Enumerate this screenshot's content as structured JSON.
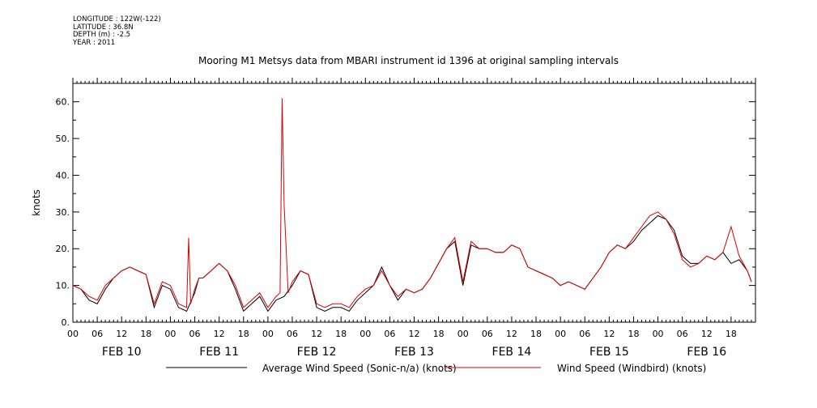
{
  "meta": {
    "longitude": "LONGITUDE : 122W(-122)",
    "latitude": "LATITUDE : 36.8N",
    "depth": "DEPTH (m) : -2.5",
    "year": "YEAR : 2011"
  },
  "chart_data": {
    "type": "line",
    "title": "Mooring M1 Metsys data from MBARI instrument id 1396 at original sampling intervals",
    "ylabel": "knots",
    "xlabel": "",
    "ylim": [
      0,
      65
    ],
    "xlim_hours": [
      0,
      168
    ],
    "y_ticks": [
      0,
      10,
      20,
      30,
      40,
      50,
      60
    ],
    "y_tick_labels": [
      "0.",
      "10.",
      "20.",
      "30.",
      "40.",
      "50.",
      "60."
    ],
    "x_hour_tick_labels": [
      "00",
      "06",
      "12",
      "18",
      "00",
      "06",
      "12",
      "18",
      "00",
      "06",
      "12",
      "18",
      "00",
      "06",
      "12",
      "18",
      "00",
      "06",
      "12",
      "18",
      "00",
      "06",
      "12",
      "18",
      "00",
      "06",
      "12",
      "18"
    ],
    "day_labels": [
      "FEB 10",
      "FEB 11",
      "FEB 12",
      "FEB 13",
      "FEB 14",
      "FEB 15",
      "FEB 16"
    ],
    "grid": false,
    "legend_position": "bottom",
    "series": [
      {
        "name": "Average Wind Speed (Sonic-n/a) (knots)",
        "color": "#000000",
        "x_hours": [
          0,
          2,
          4,
          6,
          8,
          10,
          12,
          14,
          16,
          18,
          20,
          22,
          24,
          26,
          28,
          30,
          31,
          32,
          34,
          36,
          38,
          40,
          42,
          44,
          46,
          48,
          50,
          52,
          54,
          56,
          58,
          60,
          62,
          64,
          66,
          68,
          70,
          72,
          74,
          76,
          78,
          80,
          82,
          84,
          86,
          88,
          90,
          92,
          94,
          96,
          98,
          100,
          102,
          104,
          106,
          108,
          110,
          112,
          114,
          116,
          118,
          120,
          122,
          124,
          126,
          128,
          130,
          132,
          134,
          136,
          138,
          140,
          142,
          144,
          146,
          148,
          150,
          152,
          154,
          156,
          158,
          160,
          162,
          164,
          166,
          167
        ],
        "values": [
          10,
          9,
          6,
          5,
          9,
          12,
          14,
          15,
          14,
          13,
          4,
          10,
          9,
          4,
          3,
          8,
          12,
          12,
          14,
          16,
          14,
          9,
          3,
          5,
          7,
          3,
          6,
          7,
          10,
          14,
          13,
          4,
          3,
          4,
          4,
          3,
          6,
          8,
          10,
          15,
          10,
          6,
          9,
          8,
          9,
          12,
          16,
          20,
          22,
          10,
          21,
          20,
          20,
          19,
          19,
          21,
          20,
          15,
          14,
          13,
          12,
          10,
          11,
          10,
          9,
          12,
          15,
          19,
          21,
          20,
          22,
          25,
          27,
          29,
          28,
          25,
          18,
          16,
          16,
          18,
          17,
          19,
          16,
          17,
          14,
          11
        ]
      },
      {
        "name": "Wind Speed (Windbird) (knots)",
        "color": "#dd0000",
        "x_hours": [
          0,
          2,
          4,
          6,
          8,
          10,
          12,
          14,
          16,
          18,
          20,
          22,
          24,
          26,
          28,
          28.5,
          29,
          30,
          31,
          32,
          34,
          36,
          38,
          40,
          42,
          44,
          46,
          48,
          50,
          51,
          51.5,
          52,
          52.5,
          53,
          54,
          56,
          58,
          60,
          62,
          64,
          66,
          68,
          70,
          72,
          74,
          76,
          78,
          80,
          82,
          84,
          86,
          88,
          90,
          92,
          94,
          96,
          98,
          100,
          102,
          104,
          106,
          108,
          110,
          112,
          114,
          116,
          118,
          120,
          122,
          124,
          126,
          128,
          130,
          132,
          134,
          136,
          138,
          140,
          142,
          144,
          146,
          148,
          150,
          152,
          154,
          156,
          158,
          160,
          162,
          164,
          166,
          167
        ],
        "values": [
          10,
          9,
          7,
          6,
          10,
          12,
          14,
          15,
          14,
          13,
          5,
          11,
          10,
          5,
          4,
          23,
          5,
          9,
          12,
          12,
          14,
          16,
          14,
          10,
          4,
          6,
          8,
          4,
          7,
          8,
          61,
          32,
          20,
          8,
          11,
          14,
          13,
          5,
          4,
          5,
          5,
          4,
          7,
          9,
          10,
          14,
          10,
          7,
          9,
          8,
          9,
          12,
          16,
          20,
          23,
          11,
          22,
          20,
          20,
          19,
          19,
          21,
          20,
          15,
          14,
          13,
          12,
          10,
          11,
          10,
          9,
          12,
          15,
          19,
          21,
          20,
          23,
          26,
          29,
          30,
          28,
          24,
          17,
          15,
          16,
          18,
          17,
          19,
          26,
          18,
          14,
          11
        ]
      }
    ]
  }
}
